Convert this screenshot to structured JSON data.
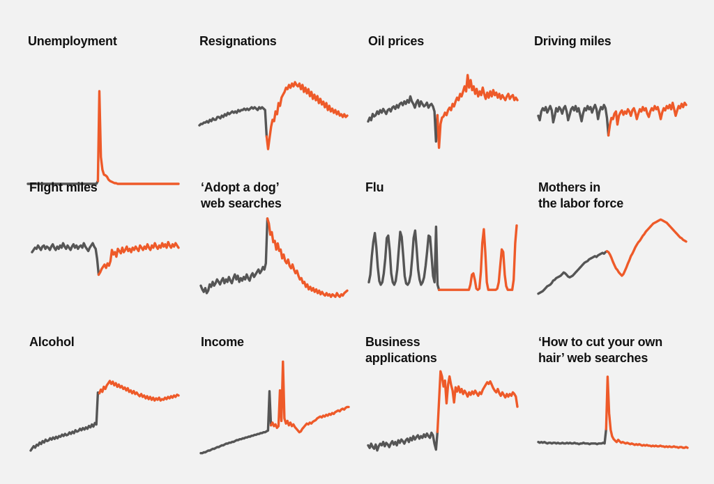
{
  "colors": {
    "before": "#555555",
    "after": "#ee5a29",
    "background": "#f2f2f2",
    "title": "#111111"
  },
  "chart_data": [
    {
      "id": "unemployment",
      "type": "line",
      "title": [
        "Unemployment"
      ],
      "break_fraction": 0.46,
      "values": [
        1.6,
        1.6,
        1.6,
        1.6,
        1.6,
        1.6,
        1.6,
        1.6,
        1.6,
        1.6,
        1.6,
        1.6,
        1.6,
        1.6,
        1.6,
        1.6,
        1.6,
        1.6,
        1.6,
        1.6,
        1.6,
        1.6,
        1.6,
        1.6,
        1.6,
        1.6,
        1.6,
        1.6,
        1.6,
        1.6,
        1.6,
        1.6,
        1.6,
        1.6,
        1.6,
        1.6,
        1.6,
        1.6,
        1.6,
        1.6,
        1.6,
        1.6,
        1.6,
        1.6,
        1.6,
        1.6,
        2,
        14.7,
        5.4,
        3.6,
        2.9,
        2.8,
        2.6,
        2.2,
        2.0,
        1.9,
        1.8,
        1.7,
        1.7,
        1.6,
        1.6,
        1.6,
        1.6,
        1.6,
        1.6,
        1.6,
        1.6,
        1.6,
        1.6,
        1.6,
        1.6,
        1.6,
        1.6,
        1.6,
        1.6,
        1.6,
        1.6,
        1.6,
        1.6,
        1.6,
        1.6,
        1.6,
        1.6,
        1.6,
        1.6,
        1.6,
        1.6,
        1.6,
        1.6,
        1.6,
        1.6,
        1.6,
        1.6,
        1.6,
        1.6,
        1.6,
        1.6,
        1.6,
        1.6,
        1.6
      ]
    },
    {
      "id": "resignations",
      "type": "line",
      "title": [
        "Resignations"
      ],
      "break_fraction": 0.45,
      "values": [
        3.4,
        3.5,
        3.5,
        3.6,
        3.6,
        3.7,
        3.6,
        3.8,
        3.7,
        3.9,
        3.8,
        3.8,
        4.0,
        4.0,
        3.9,
        4.1,
        4.0,
        4.2,
        4.1,
        4.3,
        4.2,
        4.3,
        4.4,
        4.3,
        4.4,
        4.3,
        4.5,
        4.4,
        4.5,
        4.5,
        4.6,
        4.5,
        4.6,
        4.5,
        4.6,
        4.7,
        4.6,
        4.7,
        4.6,
        4.5,
        4.7,
        4.6,
        4.7,
        4.6,
        4.5,
        2.6,
        1.7,
        2.5,
        3.3,
        3.8,
        3.7,
        4.4,
        4.2,
        5.0,
        4.8,
        5.4,
        5.6,
        5.8,
        6.1,
        6.0,
        6.3,
        6.1,
        6.4,
        6.2,
        6.5,
        6.3,
        6.2,
        6.4,
        6.0,
        6.3,
        5.8,
        6.1,
        5.7,
        6.0,
        5.5,
        5.8,
        5.3,
        5.6,
        5.2,
        5.5,
        5.0,
        5.3,
        4.9,
        5.1,
        4.7,
        5.0,
        4.5,
        4.8,
        4.4,
        4.6,
        4.3,
        4.5,
        4.2,
        4.4,
        4.1,
        4.2,
        4.0,
        4.2,
        4.0,
        4.1
      ]
    },
    {
      "id": "oil-prices",
      "type": "line",
      "title": [
        "Oil prices"
      ],
      "break_fraction": 0.46,
      "values": [
        4.6,
        4.9,
        4.7,
        5.2,
        5.0,
        5.1,
        5.4,
        5.2,
        5.5,
        5.3,
        5.6,
        5.4,
        5.2,
        5.5,
        5.6,
        5.4,
        5.7,
        5.8,
        5.6,
        5.9,
        5.7,
        6.0,
        6.1,
        5.9,
        6.2,
        6.0,
        6.3,
        6.1,
        6.6,
        6.2,
        6.0,
        5.7,
        6.1,
        6.3,
        5.8,
        6.2,
        6.0,
        5.8,
        5.9,
        6.1,
        5.7,
        5.9,
        6.0,
        5.8,
        5.4,
        3.0,
        5.1,
        2.5,
        4.4,
        4.9,
        5.0,
        5.3,
        5.1,
        5.5,
        5.7,
        5.5,
        6.0,
        5.8,
        6.2,
        6.5,
        6.3,
        6.8,
        6.6,
        7.0,
        7.4,
        7.0,
        8.3,
        7.3,
        7.9,
        7.1,
        7.4,
        6.8,
        7.2,
        6.6,
        7.0,
        6.7,
        7.3,
        6.8,
        6.4,
        6.9,
        6.5,
        7.0,
        6.6,
        7.1,
        6.7,
        6.9,
        6.5,
        6.8,
        6.4,
        6.7,
        6.5,
        6.3,
        6.6,
        6.8,
        6.4,
        6.6,
        6.7,
        6.3,
        6.5,
        6.3
      ]
    },
    {
      "id": "driving-miles",
      "type": "line",
      "title": [
        "Driving miles"
      ],
      "break_fraction": 0.47,
      "values": [
        5.2,
        4.8,
        5.6,
        5.9,
        5.7,
        6.0,
        5.5,
        5.8,
        6.1,
        5.7,
        4.6,
        5.2,
        5.9,
        5.6,
        6.0,
        5.8,
        5.4,
        5.9,
        6.1,
        5.6,
        4.8,
        5.3,
        5.8,
        6.0,
        5.7,
        6.1,
        5.6,
        5.9,
        5.3,
        4.7,
        5.4,
        5.9,
        5.7,
        6.1,
        5.8,
        6.0,
        5.5,
        5.9,
        6.2,
        5.8,
        4.9,
        5.6,
        6.0,
        5.8,
        6.2,
        5.9,
        5.0,
        3.4,
        4.4,
        5.0,
        4.9,
        5.4,
        5.6,
        4.4,
        5.2,
        5.5,
        5.7,
        5.3,
        5.6,
        5.4,
        5.8,
        5.6,
        5.2,
        5.7,
        5.9,
        5.5,
        4.9,
        5.4,
        5.8,
        5.6,
        6.0,
        5.7,
        5.9,
        5.4,
        5.1,
        5.6,
        5.9,
        5.7,
        6.1,
        5.8,
        6.0,
        5.5,
        4.9,
        5.5,
        5.9,
        5.7,
        6.1,
        5.9,
        6.2,
        5.8,
        6.4,
        5.8,
        5.2,
        5.7,
        6.1,
        5.9,
        6.3,
        6.0,
        6.4,
        6.2
      ]
    },
    {
      "id": "flight-miles",
      "type": "line",
      "title": [
        "Flight miles"
      ],
      "break_fraction": 0.45,
      "values": [
        5.4,
        5.6,
        5.8,
        5.7,
        6.0,
        5.8,
        5.6,
        5.9,
        6.0,
        5.7,
        5.9,
        5.8,
        5.6,
        5.9,
        6.1,
        5.8,
        5.6,
        5.9,
        5.7,
        6.0,
        5.8,
        6.2,
        5.9,
        5.7,
        6.0,
        5.8,
        5.6,
        5.9,
        6.1,
        5.8,
        6.0,
        5.7,
        5.9,
        6.0,
        5.8,
        6.2,
        5.9,
        5.7,
        5.5,
        5.8,
        6.0,
        6.2,
        5.9,
        5.7,
        4.8,
        3.4,
        3.6,
        3.9,
        4.1,
        4.3,
        4.0,
        4.4,
        4.2,
        4.6,
        5.6,
        5.2,
        5.4,
        5.0,
        5.7,
        5.5,
        5.3,
        5.8,
        5.4,
        5.6,
        5.9,
        5.5,
        5.7,
        5.4,
        5.8,
        5.6,
        5.9,
        5.7,
        5.5,
        6.0,
        5.8,
        5.6,
        5.9,
        5.7,
        6.1,
        5.8,
        5.6,
        6.0,
        5.8,
        6.2,
        5.9,
        5.7,
        6.0,
        5.8,
        6.2,
        5.9,
        6.1,
        5.8,
        6.3,
        6.0,
        5.8,
        6.1,
        5.9,
        6.2,
        6.0,
        5.8
      ]
    },
    {
      "id": "adopt-a-dog",
      "type": "line",
      "title": [
        "‘Adopt a dog’",
        "web searches"
      ],
      "break_fraction": 0.45,
      "values": [
        4.0,
        3.7,
        3.5,
        3.8,
        3.4,
        3.6,
        4.1,
        3.9,
        4.3,
        4.0,
        4.2,
        4.5,
        4.3,
        4.1,
        4.4,
        4.6,
        4.2,
        4.5,
        4.3,
        4.7,
        4.4,
        4.2,
        4.6,
        4.9,
        4.5,
        4.8,
        4.3,
        4.6,
        4.4,
        4.7,
        4.5,
        4.9,
        4.6,
        4.4,
        4.8,
        5.0,
        4.7,
        4.9,
        5.1,
        5.3,
        5.0,
        5.2,
        5.5,
        5.3,
        5.8,
        9.4,
        9.0,
        8.1,
        8.3,
        7.5,
        7.6,
        6.9,
        7.4,
        6.8,
        6.9,
        6.2,
        6.5,
        6.0,
        5.8,
        6.1,
        5.6,
        5.4,
        5.7,
        5.3,
        5.0,
        5.2,
        4.8,
        4.5,
        4.6,
        4.2,
        4.3,
        3.9,
        4.1,
        3.7,
        3.9,
        3.6,
        3.8,
        3.5,
        3.7,
        3.4,
        3.6,
        3.3,
        3.5,
        3.3,
        3.2,
        3.4,
        3.2,
        3.3,
        3.1,
        3.3,
        3.2,
        3.1,
        3.4,
        3.2,
        3.1,
        3.3,
        3.2,
        3.4,
        3.5,
        3.6
      ]
    },
    {
      "id": "flu",
      "type": "line",
      "title": [
        "Flu"
      ],
      "break_fraction": 0.47,
      "values": [
        4.4,
        5.0,
        6.5,
        7.6,
        8.3,
        7.2,
        5.6,
        4.5,
        4.2,
        4.4,
        5.1,
        6.3,
        7.9,
        8.1,
        6.9,
        5.1,
        4.4,
        4.2,
        4.5,
        5.4,
        6.9,
        8.4,
        8.0,
        6.5,
        4.9,
        4.3,
        4.2,
        4.4,
        5.0,
        6.3,
        7.9,
        8.5,
        7.1,
        5.4,
        4.6,
        4.2,
        4.4,
        4.8,
        5.7,
        6.8,
        8.1,
        8.0,
        6.5,
        4.9,
        4.4,
        8.8,
        4.2,
        3.8,
        3.8,
        3.8,
        3.8,
        3.8,
        3.8,
        3.8,
        3.8,
        3.8,
        3.8,
        3.8,
        3.8,
        3.8,
        3.8,
        3.8,
        3.8,
        3.8,
        3.8,
        3.8,
        3.8,
        3.8,
        4.2,
        5.0,
        5.1,
        4.6,
        3.9,
        3.8,
        3.9,
        5.2,
        7.5,
        8.6,
        6.8,
        4.4,
        3.8,
        3.8,
        3.8,
        3.8,
        3.8,
        3.8,
        3.9,
        4.4,
        5.7,
        7.0,
        6.8,
        5.0,
        4.1,
        3.8,
        3.8,
        3.8,
        3.8,
        4.6,
        7.5,
        8.9
      ]
    },
    {
      "id": "mothers-labor-force",
      "type": "line",
      "title": [
        "Mothers in",
        "the labor force"
      ],
      "break_fraction": 0.46,
      "values": [
        2.0,
        2.1,
        2.2,
        2.3,
        2.5,
        2.7,
        2.9,
        3.0,
        3.1,
        3.3,
        3.6,
        3.7,
        3.9,
        4.0,
        4.1,
        4.2,
        4.4,
        4.6,
        4.5,
        4.3,
        4.1,
        4.0,
        4.1,
        4.2,
        4.4,
        4.6,
        4.8,
        5.0,
        5.2,
        5.4,
        5.6,
        5.8,
        5.9,
        6.0,
        6.2,
        6.3,
        6.4,
        6.5,
        6.6,
        6.5,
        6.7,
        6.8,
        6.9,
        7.0,
        6.9,
        7.1,
        7.2,
        7.1,
        6.8,
        6.4,
        5.9,
        5.5,
        5.1,
        4.9,
        4.6,
        4.4,
        4.2,
        4.4,
        4.8,
        5.2,
        5.7,
        6.1,
        6.6,
        6.9,
        7.3,
        7.7,
        8.0,
        8.3,
        8.5,
        8.8,
        9.1,
        9.3,
        9.6,
        9.8,
        10.0,
        10.2,
        10.4,
        10.6,
        10.7,
        10.8,
        10.9,
        11.0,
        11.1,
        11.0,
        10.9,
        10.8,
        10.7,
        10.5,
        10.3,
        10.1,
        9.9,
        9.7,
        9.5,
        9.3,
        9.1,
        8.9,
        8.8,
        8.6,
        8.5,
        8.4
      ]
    },
    {
      "id": "alcohol",
      "type": "line",
      "title": [
        "Alcohol"
      ],
      "break_fraction": 0.46,
      "values": [
        1.6,
        1.9,
        2.2,
        2.0,
        2.4,
        2.3,
        2.7,
        2.5,
        2.9,
        2.7,
        3.1,
        2.9,
        3.0,
        3.3,
        3.1,
        3.4,
        3.2,
        3.5,
        3.3,
        3.6,
        3.5,
        3.8,
        3.6,
        3.9,
        3.7,
        3.8,
        4.1,
        3.9,
        4.2,
        4.0,
        4.4,
        4.2,
        4.3,
        4.6,
        4.4,
        4.7,
        4.5,
        4.8,
        4.6,
        5.0,
        4.8,
        5.2,
        4.9,
        5.4,
        5.2,
        9.6,
        9.5,
        10.0,
        9.7,
        10.4,
        10.1,
        10.6,
        10.9,
        11.2,
        10.8,
        11.1,
        10.6,
        10.9,
        10.4,
        10.7,
        10.3,
        10.5,
        10.1,
        10.3,
        9.9,
        10.2,
        9.7,
        9.9,
        9.5,
        9.8,
        9.4,
        9.6,
        9.3,
        9.1,
        9.4,
        9.0,
        9.2,
        8.8,
        9.1,
        8.7,
        9.0,
        8.6,
        8.9,
        8.5,
        8.8,
        8.6,
        8.9,
        8.5,
        8.7,
        8.6,
        8.9,
        8.7,
        9.0,
        8.8,
        9.1,
        8.9,
        9.2,
        9.0,
        9.3,
        9.2
      ]
    },
    {
      "id": "income",
      "type": "line",
      "title": [
        "Income"
      ],
      "break_fraction": 0.47,
      "values": [
        2.2,
        2.2,
        2.3,
        2.3,
        2.4,
        2.5,
        2.5,
        2.6,
        2.7,
        2.7,
        2.8,
        2.9,
        2.9,
        3.0,
        3.1,
        3.1,
        3.2,
        3.3,
        3.3,
        3.4,
        3.4,
        3.5,
        3.5,
        3.6,
        3.7,
        3.7,
        3.8,
        3.8,
        3.9,
        3.9,
        4.0,
        4.0,
        4.1,
        4.1,
        4.2,
        4.2,
        4.3,
        4.3,
        4.4,
        4.4,
        4.5,
        4.5,
        4.6,
        4.6,
        4.7,
        4.8,
        9.3,
        5.4,
        5.7,
        5.3,
        5.5,
        5.1,
        5.3,
        9.4,
        5.9,
        12.7,
        6.2,
        5.6,
        5.9,
        5.4,
        5.7,
        5.3,
        5.5,
        5.2,
        5.0,
        4.8,
        4.6,
        4.7,
        5.0,
        5.2,
        5.4,
        5.6,
        5.5,
        5.7,
        5.6,
        5.8,
        5.9,
        6.0,
        6.2,
        6.3,
        6.4,
        6.3,
        6.5,
        6.4,
        6.6,
        6.5,
        6.7,
        6.6,
        6.8,
        6.7,
        6.9,
        7.0,
        7.1,
        7.0,
        7.2,
        7.3,
        7.2,
        7.4,
        7.5,
        7.5
      ]
    },
    {
      "id": "business-applications",
      "type": "line",
      "title": [
        "Business",
        "applications"
      ],
      "break_fraction": 0.46,
      "values": [
        2.4,
        2.1,
        2.6,
        2.2,
        2.0,
        2.5,
        1.8,
        2.3,
        2.6,
        2.4,
        2.8,
        2.3,
        2.7,
        2.5,
        2.2,
        2.6,
        2.9,
        2.5,
        2.8,
        2.4,
        3.0,
        2.7,
        3.1,
        2.9,
        2.6,
        3.0,
        3.2,
        2.8,
        3.3,
        3.0,
        3.5,
        3.1,
        3.4,
        3.6,
        3.2,
        3.5,
        3.3,
        3.7,
        3.4,
        3.8,
        3.5,
        3.3,
        3.9,
        3.6,
        2.6,
        1.9,
        4.0,
        7.6,
        11.2,
        10.6,
        9.4,
        10.1,
        7.4,
        9.6,
        10.6,
        9.6,
        8.9,
        7.5,
        9.3,
        8.8,
        9.4,
        8.7,
        9.1,
        8.5,
        8.9,
        8.6,
        8.2,
        8.7,
        8.4,
        8.8,
        8.5,
        8.9,
        8.6,
        8.3,
        8.7,
        8.5,
        9.0,
        9.3,
        9.6,
        9.9,
        9.7,
        10.0,
        9.6,
        9.2,
        8.9,
        8.7,
        9.1,
        8.6,
        8.3,
        8.7,
        8.4,
        8.1,
        8.5,
        8.2,
        8.5,
        8.3,
        8.7,
        8.5,
        8.2,
        7.0
      ]
    },
    {
      "id": "cut-own-hair",
      "type": "line",
      "title": [
        "‘How to cut your own",
        "hair’ web searches"
      ],
      "break_fraction": 0.45,
      "values": [
        2.2,
        2.1,
        2.2,
        2.1,
        2.2,
        2.1,
        2.0,
        2.1,
        2.1,
        2.0,
        2.1,
        2.1,
        2.0,
        2.1,
        2.0,
        2.0,
        2.1,
        2.0,
        2.0,
        2.1,
        2.0,
        2.1,
        2.0,
        2.0,
        2.1,
        2.0,
        2.0,
        1.9,
        2.0,
        2.0,
        2.1,
        2.0,
        2.0,
        2.0,
        1.9,
        2.0,
        2.0,
        2.0,
        2.0,
        1.9,
        2.0,
        2.0,
        2.0,
        2.1,
        2.0,
        4.0,
        11.3,
        6.2,
        3.9,
        3.0,
        2.6,
        2.4,
        2.2,
        2.5,
        2.3,
        2.1,
        2.2,
        2.1,
        2.0,
        2.1,
        2.0,
        1.9,
        2.0,
        1.9,
        1.8,
        1.9,
        1.8,
        1.9,
        1.8,
        1.7,
        1.8,
        1.7,
        1.8,
        1.7,
        1.7,
        1.6,
        1.7,
        1.6,
        1.7,
        1.6,
        1.6,
        1.7,
        1.6,
        1.6,
        1.5,
        1.6,
        1.5,
        1.6,
        1.5,
        1.5,
        1.6,
        1.5,
        1.5,
        1.4,
        1.5,
        1.5,
        1.4,
        1.4,
        1.5,
        1.4
      ]
    }
  ]
}
